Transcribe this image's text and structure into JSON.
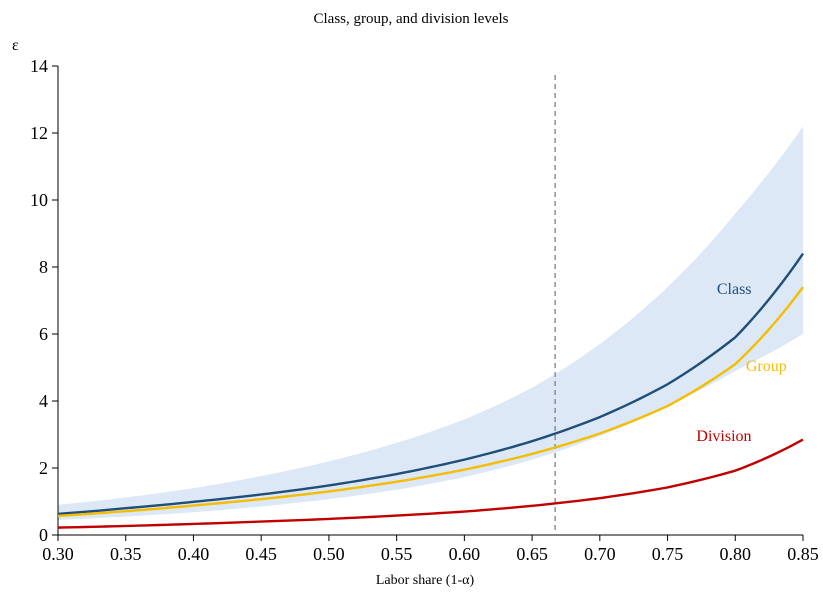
{
  "chart_data": {
    "type": "line",
    "title": "Class, group, and division levels",
    "xlabel": "Labor share (1-α)",
    "ylabel": "ε",
    "xlim": [
      0.3,
      0.85
    ],
    "ylim": [
      0,
      14
    ],
    "x_ticks": [
      "0.30",
      "0.35",
      "0.40",
      "0.45",
      "0.50",
      "0.55",
      "0.60",
      "0.65",
      "0.70",
      "0.75",
      "0.80",
      "0.85"
    ],
    "y_ticks": [
      "0",
      "2",
      "4",
      "6",
      "8",
      "10",
      "12",
      "14"
    ],
    "reference_line": {
      "x": 0.667,
      "style": "dashed",
      "color": "#808080"
    },
    "band": {
      "color": "#dce8f5",
      "x": [
        0.3,
        0.35,
        0.4,
        0.45,
        0.5,
        0.55,
        0.6,
        0.65,
        0.7,
        0.75,
        0.8,
        0.85
      ],
      "lower": [
        0.45,
        0.55,
        0.68,
        0.85,
        1.07,
        1.35,
        1.73,
        2.25,
        2.95,
        3.85,
        4.9,
        6.0
      ],
      "upper": [
        0.9,
        1.12,
        1.4,
        1.76,
        2.2,
        2.75,
        3.45,
        4.4,
        5.7,
        7.4,
        9.6,
        12.2
      ]
    },
    "series": [
      {
        "name": "Class",
        "color": "#1f4e79",
        "x": [
          0.3,
          0.35,
          0.4,
          0.45,
          0.5,
          0.55,
          0.6,
          0.65,
          0.7,
          0.75,
          0.8,
          0.85
        ],
        "values": [
          0.63,
          0.8,
          0.99,
          1.21,
          1.48,
          1.82,
          2.25,
          2.8,
          3.52,
          4.5,
          5.9,
          8.4
        ]
      },
      {
        "name": "Group",
        "color": "#f5bd00",
        "x": [
          0.3,
          0.35,
          0.4,
          0.45,
          0.5,
          0.55,
          0.6,
          0.65,
          0.7,
          0.75,
          0.8,
          0.85
        ],
        "values": [
          0.57,
          0.71,
          0.88,
          1.07,
          1.3,
          1.59,
          1.95,
          2.42,
          3.03,
          3.85,
          5.1,
          7.4
        ]
      },
      {
        "name": "Division",
        "color": "#c00000",
        "x": [
          0.3,
          0.35,
          0.4,
          0.45,
          0.5,
          0.55,
          0.6,
          0.65,
          0.7,
          0.75,
          0.8,
          0.85
        ],
        "values": [
          0.22,
          0.27,
          0.33,
          0.4,
          0.48,
          0.58,
          0.7,
          0.87,
          1.1,
          1.42,
          1.92,
          2.85
        ]
      }
    ]
  }
}
